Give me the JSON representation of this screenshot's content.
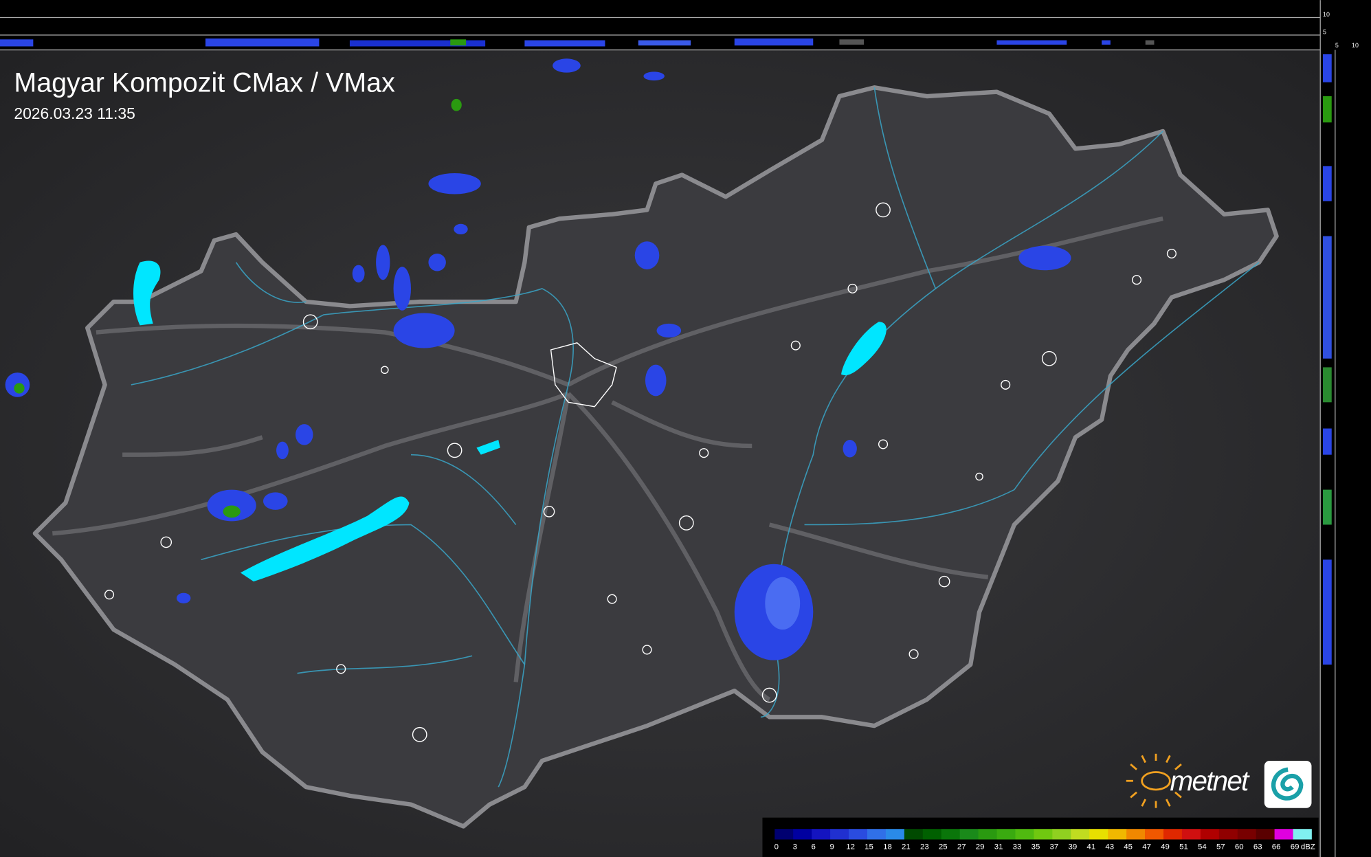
{
  "header": {
    "title": "Magyar Kompozit CMax / VMax",
    "timestamp": "2026.03.23 11:35"
  },
  "side_axis": {
    "top_labels": [
      10,
      5
    ],
    "bottom_labels": [
      5,
      10
    ]
  },
  "logo": {
    "text": "metnet"
  },
  "legend": {
    "values": [
      0,
      3,
      6,
      9,
      12,
      15,
      18,
      21,
      23,
      25,
      27,
      29,
      31,
      33,
      35,
      37,
      39,
      41,
      43,
      45,
      47,
      49,
      51,
      54,
      57,
      60,
      63,
      66,
      69
    ],
    "colors": [
      "#000070",
      "#0000a0",
      "#1414c0",
      "#2030d0",
      "#2a4ce0",
      "#3070e8",
      "#2a8ae8",
      "#004a00",
      "#006000",
      "#0a760a",
      "#1a8a1a",
      "#2a9a10",
      "#3aaa10",
      "#50ba10",
      "#70c810",
      "#90d020",
      "#c0dc20",
      "#e8e000",
      "#f0b800",
      "#f08800",
      "#f05800",
      "#e02800",
      "#d01010",
      "#b00000",
      "#900000",
      "#780000",
      "#5a0000",
      "#e000e0",
      "#80f0f0"
    ],
    "unit": "dBZ"
  }
}
